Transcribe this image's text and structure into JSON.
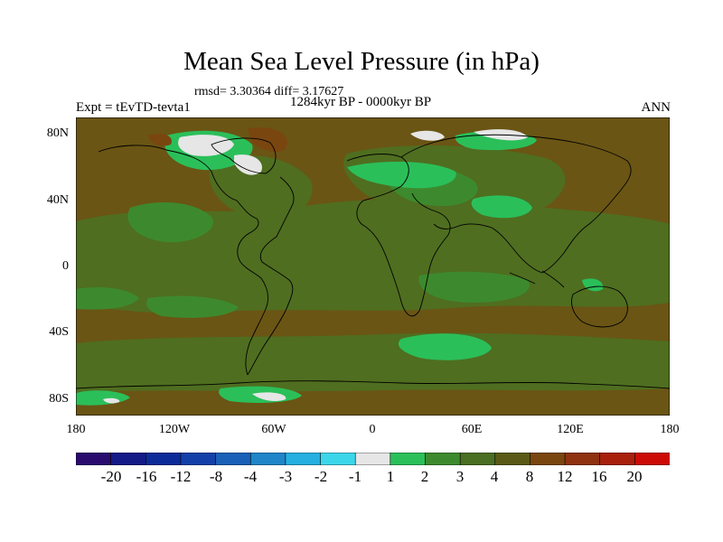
{
  "title": "Mean Sea Level Pressure (in hPa)",
  "stats": "rmsd= 3.30364  diff= 3.17627",
  "period": "1284kyr BP - 0000kyr BP",
  "experiment": "Expt = tEvTD-tevta1",
  "season": "ANN",
  "lat_labels": [
    "80N",
    "40N",
    "0",
    "40S",
    "80S"
  ],
  "lon_labels": [
    "180",
    "120W",
    "60W",
    "0",
    "60E",
    "120E",
    "180"
  ],
  "colorbar": {
    "labels": [
      "-20",
      "-16",
      "-12",
      "-8",
      "-4",
      "-3",
      "-2",
      "-1",
      "1",
      "2",
      "3",
      "4",
      "8",
      "12",
      "16",
      "20"
    ],
    "colors": [
      "#2a0b6e",
      "#141a86",
      "#0d2b98",
      "#1340a8",
      "#1a60b8",
      "#1f85c8",
      "#25aee0",
      "#3cd6ea",
      "#e6e6e6",
      "#2bbf5a",
      "#3d8a2e",
      "#4a6e22",
      "#5a5a16",
      "#7a4610",
      "#8e3210",
      "#a8200c",
      "#cc0a06"
    ]
  },
  "palette": {
    "ocean_brown": "#6a5514",
    "green_3_4": "#4f6e20",
    "green_2_3": "#3d8a2e",
    "green_1_2": "#2bbf5a",
    "near_zero": "#e6e6e6",
    "reddish": "#7a4610"
  }
}
